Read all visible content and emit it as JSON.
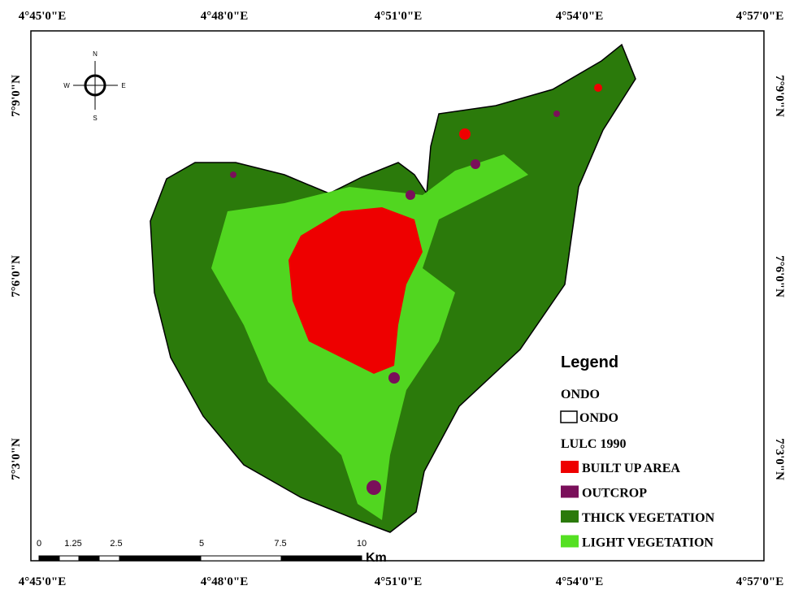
{
  "coordinates": {
    "top": [
      "4°45'0\"E",
      "4°48'0\"E",
      "4°51'0\"E",
      "4°54'0\"E",
      "4°57'0\"E"
    ],
    "bottom": [
      "4°45'0\"E",
      "4°48'0\"E",
      "4°51'0\"E",
      "4°54'0\"E",
      "4°57'0\"E"
    ],
    "left": [
      "7°9'0\"N",
      "7°6'0\"N",
      "7°3'0\"N"
    ],
    "right": [
      "7°9'0\"N",
      "7°6'0\"N",
      "7°3'0\"N"
    ]
  },
  "compass": {
    "north": "N",
    "south": "S",
    "east": "E",
    "west": "W"
  },
  "scale_bar": {
    "ticks": [
      "0",
      "1.25",
      "2.5",
      "5",
      "7.5",
      "10"
    ],
    "unit": "Km"
  },
  "legend": {
    "title": "Legend",
    "boundary_layer": "ONDO",
    "boundary_item": "ONDO",
    "lulc_layer": "LULC 1990",
    "items": [
      {
        "label": "BUILT UP AREA",
        "color": "#ee0000"
      },
      {
        "label": "OUTCROP",
        "color": "#7a0f5a"
      },
      {
        "label": "THICK VEGETATION",
        "color": "#2b7a0b"
      },
      {
        "label": "LIGHT VEGETATION",
        "color": "#55e022"
      }
    ]
  }
}
